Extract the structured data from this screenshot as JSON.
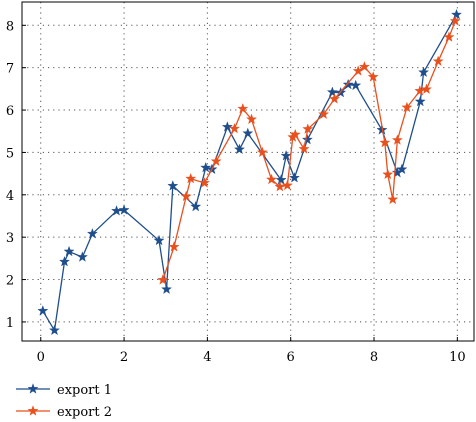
{
  "chart_data": {
    "type": "line",
    "title": "",
    "xlabel": "",
    "ylabel": "",
    "xlim": [
      -0.45,
      10.4
    ],
    "ylim": [
      0.55,
      8.55
    ],
    "x_ticks": [
      0,
      2,
      4,
      6,
      8,
      10
    ],
    "y_ticks": [
      1,
      2,
      3,
      4,
      5,
      6,
      7,
      8
    ],
    "x_tick_labels": [
      "0",
      "2",
      "4",
      "6",
      "8",
      "10"
    ],
    "y_tick_labels": [
      "1",
      "2",
      "3",
      "4",
      "5",
      "6",
      "7",
      "8"
    ],
    "grid": "dotted",
    "legend_position": "bottom-left",
    "series": [
      {
        "name": "export 1",
        "color": "#1f4e8c",
        "marker": "star",
        "x": [
          0.05,
          0.33,
          0.57,
          0.68,
          1.0,
          1.24,
          1.82,
          2.0,
          2.84,
          3.02,
          3.17,
          3.72,
          3.96,
          4.11,
          4.48,
          4.77,
          4.97,
          5.77,
          5.89,
          6.09,
          6.4,
          7.0,
          7.2,
          7.38,
          7.56,
          8.19,
          8.56,
          8.67,
          9.11,
          9.19,
          9.98
        ],
        "y": [
          1.26,
          0.8,
          2.42,
          2.66,
          2.53,
          3.08,
          3.62,
          3.64,
          2.92,
          1.77,
          4.21,
          3.72,
          4.64,
          4.6,
          5.6,
          5.07,
          5.45,
          4.35,
          4.92,
          4.4,
          5.3,
          6.42,
          6.41,
          6.6,
          6.58,
          5.53,
          4.52,
          4.6,
          6.2,
          6.89,
          8.25
        ]
      },
      {
        "name": "export 2",
        "color": "#e8501e",
        "marker": "star",
        "x": [
          2.93,
          3.2,
          3.49,
          3.6,
          3.93,
          4.21,
          4.65,
          4.85,
          5.06,
          5.32,
          5.54,
          5.74,
          5.92,
          6.05,
          6.11,
          6.32,
          6.41,
          6.79,
          7.05,
          7.62,
          7.77,
          7.98,
          8.26,
          8.33,
          8.45,
          8.56,
          8.79,
          9.1,
          9.26,
          9.54,
          9.8,
          9.95
        ],
        "y": [
          1.99,
          2.77,
          3.96,
          4.38,
          4.28,
          4.79,
          5.56,
          6.03,
          5.78,
          5.0,
          4.36,
          4.19,
          4.22,
          5.36,
          5.42,
          5.08,
          5.55,
          5.9,
          6.26,
          6.92,
          7.02,
          6.78,
          5.23,
          4.48,
          3.89,
          5.29,
          6.06,
          6.45,
          6.49,
          7.15,
          7.72,
          8.1
        ]
      }
    ]
  }
}
